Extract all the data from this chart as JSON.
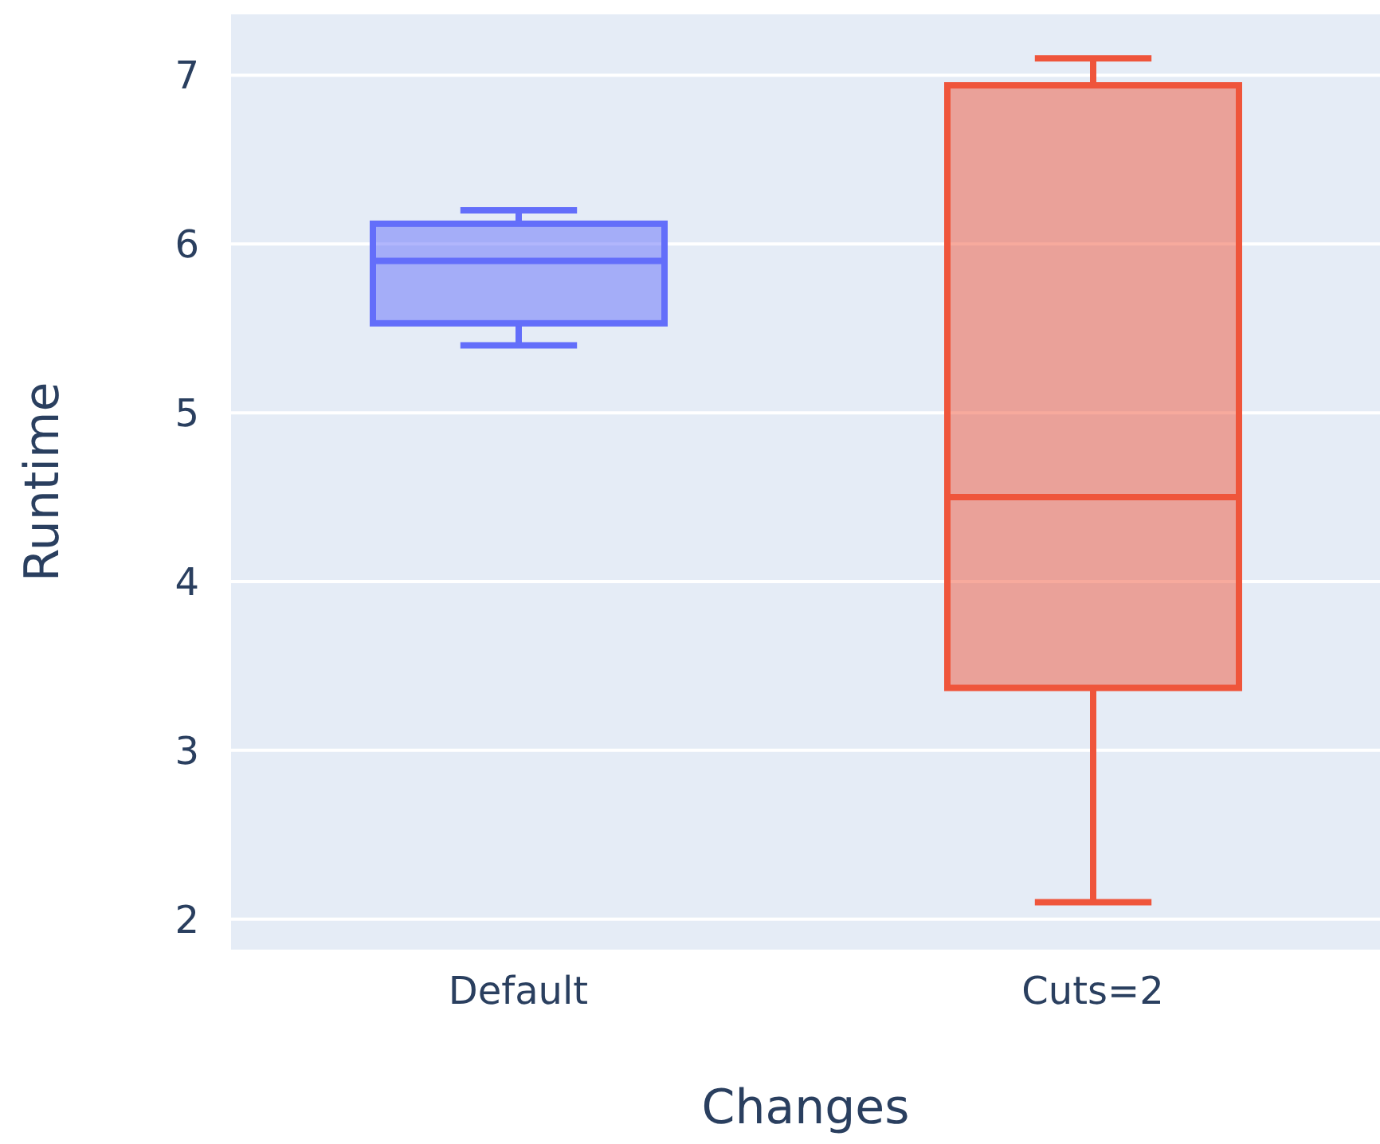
{
  "chart_data": {
    "type": "box",
    "xlabel": "Changes",
    "ylabel": "Runtime",
    "categories": [
      "Default",
      "Cuts=2"
    ],
    "boxes": [
      {
        "low": 5.4,
        "q1": 5.53,
        "median": 5.9,
        "q3": 6.12,
        "high": 6.2
      },
      {
        "low": 2.1,
        "q1": 3.37,
        "median": 4.5,
        "q3": 6.94,
        "high": 7.1
      }
    ],
    "colors": [
      "#636efa",
      "#ef553b"
    ],
    "ylim": [
      1.81,
      7.37
    ],
    "yticks": [
      2,
      3,
      4,
      5,
      6,
      7
    ],
    "grid": "y",
    "legend": false
  }
}
